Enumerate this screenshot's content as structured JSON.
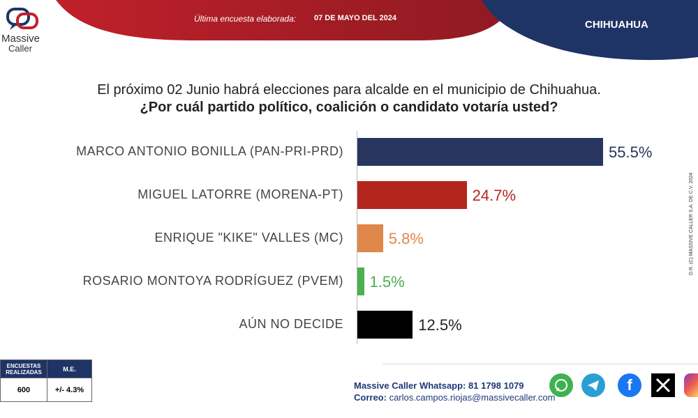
{
  "brand": {
    "name": "Massive",
    "sub": "Caller"
  },
  "header": {
    "survey_label": "Última encuesta elaborada:",
    "survey_date": "07 DE MAYO DEL 2024",
    "state": "CHIHUAHUA"
  },
  "question": {
    "line1": "El próximo 02 Junio habrá elecciones para alcalde en el municipio de Chihuahua.",
    "line2": "¿Por cuál partido político, coalición o candidato votaría usted?"
  },
  "chart_data": {
    "type": "bar",
    "orientation": "horizontal",
    "categories": [
      "MARCO ANTONIO BONILLA (PAN-PRI-PRD)",
      "MIGUEL LATORRE (MORENA-PT)",
      "ENRIQUE \"KIKE\" VALLES (MC)",
      "ROSARIO MONTOYA RODRÍGUEZ (PVEM)",
      "AÚN NO DECIDE"
    ],
    "values": [
      55.5,
      24.7,
      5.8,
      1.5,
      12.5
    ],
    "value_labels": [
      "55.5%",
      "24.7%",
      "5.8%",
      "1.5%",
      "12.5%"
    ],
    "colors": [
      "#27355f",
      "#b3261e",
      "#e0874a",
      "#4caf50",
      "#000000"
    ],
    "grid": false
  },
  "stats": {
    "col1_header": "ENCUESTAS REALIZADAS",
    "col2_header": "M.E.",
    "col1_value": "600",
    "col2_value": "+/- 4.3%"
  },
  "footer": {
    "whatsapp_label": "Massive Caller Whatsapp:",
    "whatsapp_number": "81 1798  1079",
    "email_label": "Correo:",
    "email": "carlos.campos.riojas@massivecaller.com"
  },
  "side_note": "D.R. (C) MASSIVE CALLER S.A. DE C.V. 2024",
  "social_icons": [
    "whatsapp-icon",
    "telegram-icon",
    "facebook-icon",
    "x-icon",
    "instagram-icon"
  ]
}
